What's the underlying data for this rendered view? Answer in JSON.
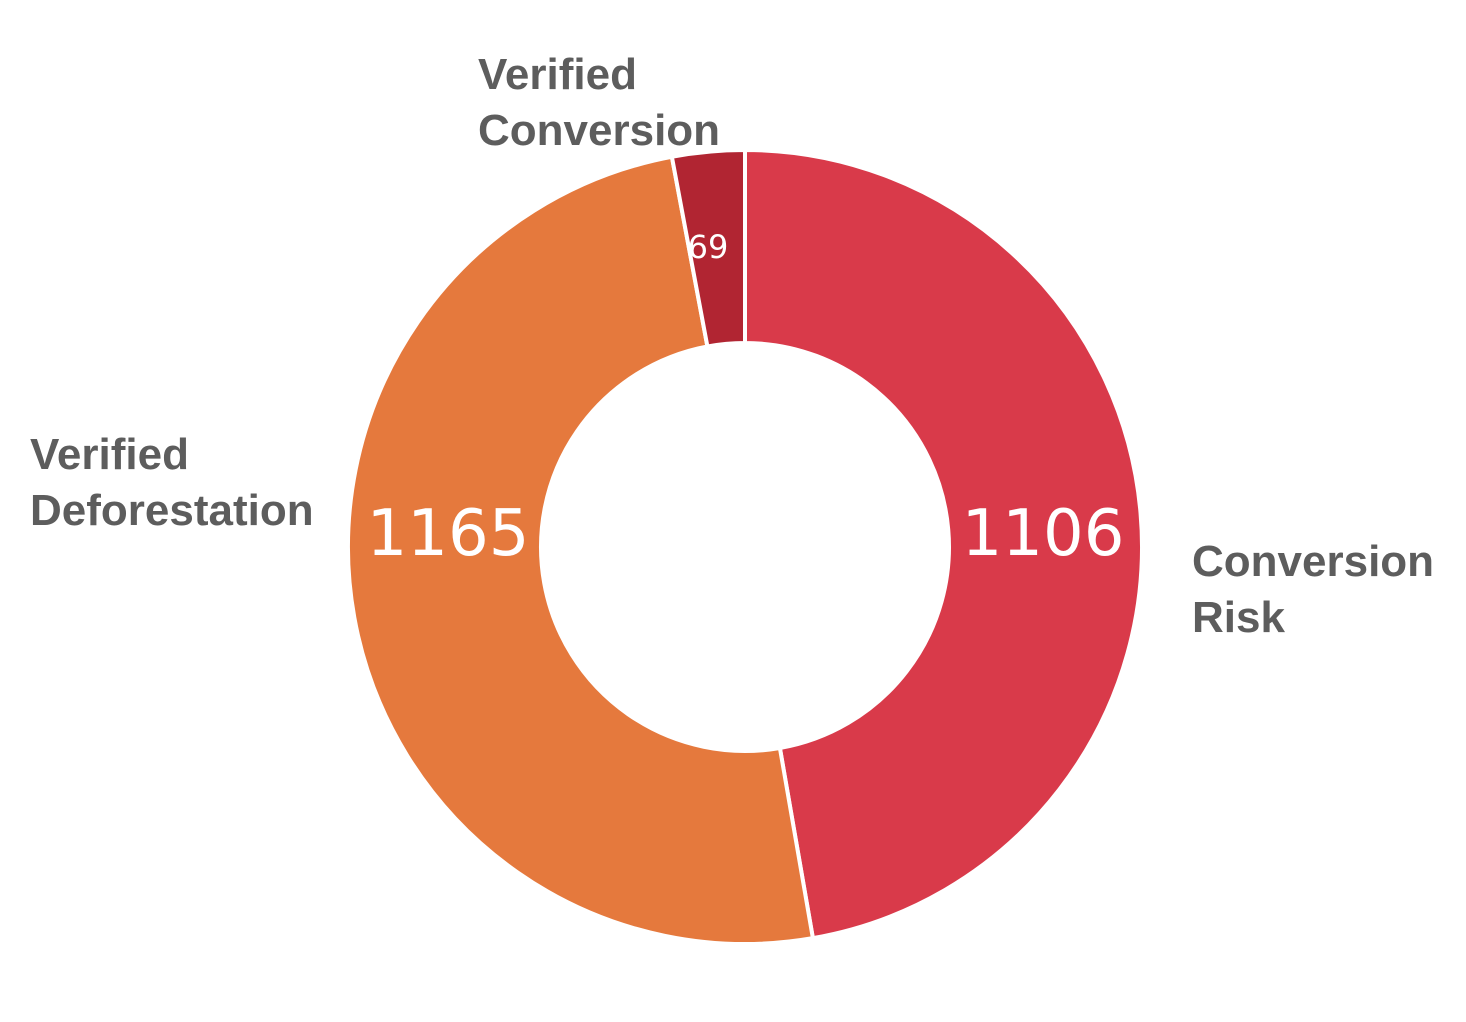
{
  "chart_data": {
    "type": "pie",
    "variant": "donut",
    "slices": [
      {
        "label": "Conversion Risk",
        "value": 1106,
        "color": "#d93a4a"
      },
      {
        "label": "Verified Deforestation",
        "value": 1165,
        "color": "#e5793d"
      },
      {
        "label": "Verified Conversion",
        "value": 69,
        "color": "#b12532"
      }
    ],
    "slice_order": "clockwise-from-top",
    "legend": "none",
    "label_position": "outside"
  }
}
